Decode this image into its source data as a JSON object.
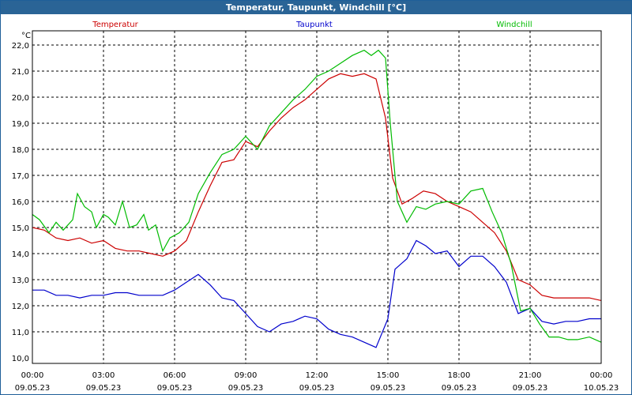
{
  "window_title": "Temperatur, Taupunkt, Windchill [°C]",
  "chart_data": {
    "type": "line",
    "unit_label": "°C",
    "ylim": [
      10.0,
      22.0
    ],
    "yticks": [
      "10,0",
      "11,0",
      "12,0",
      "13,0",
      "14,0",
      "15,0",
      "16,0",
      "17,0",
      "18,0",
      "19,0",
      "20,0",
      "21,0",
      "22,0"
    ],
    "xlim_hours": [
      0,
      24
    ],
    "xticks": [
      {
        "time": "00:00",
        "date": "09.05.23"
      },
      {
        "time": "03:00",
        "date": "09.05.23"
      },
      {
        "time": "06:00",
        "date": "09.05.23"
      },
      {
        "time": "09:00",
        "date": "09.05.23"
      },
      {
        "time": "12:00",
        "date": "09.05.23"
      },
      {
        "time": "15:00",
        "date": "09.05.23"
      },
      {
        "time": "18:00",
        "date": "09.05.23"
      },
      {
        "time": "21:00",
        "date": "09.05.23"
      },
      {
        "time": "00:00",
        "date": "10.05.23"
      }
    ],
    "grid": true,
    "series": [
      {
        "name": "Temperatur",
        "color": "#cc0000",
        "points": [
          [
            0,
            15.0
          ],
          [
            0.5,
            14.9
          ],
          [
            1,
            14.6
          ],
          [
            1.5,
            14.5
          ],
          [
            2,
            14.6
          ],
          [
            2.5,
            14.4
          ],
          [
            3,
            14.5
          ],
          [
            3.5,
            14.2
          ],
          [
            4,
            14.1
          ],
          [
            4.5,
            14.1
          ],
          [
            5,
            14.0
          ],
          [
            5.5,
            13.9
          ],
          [
            6,
            14.1
          ],
          [
            6.5,
            14.5
          ],
          [
            7,
            15.6
          ],
          [
            7.5,
            16.6
          ],
          [
            8,
            17.5
          ],
          [
            8.5,
            17.6
          ],
          [
            9,
            18.3
          ],
          [
            9.5,
            18.1
          ],
          [
            10,
            18.7
          ],
          [
            10.5,
            19.2
          ],
          [
            11,
            19.6
          ],
          [
            11.5,
            19.9
          ],
          [
            12,
            20.3
          ],
          [
            12.5,
            20.7
          ],
          [
            13,
            20.9
          ],
          [
            13.5,
            20.8
          ],
          [
            14,
            20.9
          ],
          [
            14.5,
            20.7
          ],
          [
            14.9,
            19.2
          ],
          [
            15.2,
            16.9
          ],
          [
            15.6,
            15.9
          ],
          [
            16,
            16.1
          ],
          [
            16.5,
            16.4
          ],
          [
            17,
            16.3
          ],
          [
            17.5,
            16.0
          ],
          [
            18,
            15.8
          ],
          [
            18.5,
            15.6
          ],
          [
            19,
            15.2
          ],
          [
            19.5,
            14.8
          ],
          [
            20,
            14.1
          ],
          [
            20.5,
            13.0
          ],
          [
            21,
            12.8
          ],
          [
            21.5,
            12.4
          ],
          [
            22,
            12.3
          ],
          [
            22.5,
            12.3
          ],
          [
            23,
            12.3
          ],
          [
            23.5,
            12.3
          ],
          [
            24,
            12.2
          ]
        ]
      },
      {
        "name": "Taupunkt",
        "color": "#0000cc",
        "points": [
          [
            0,
            12.6
          ],
          [
            0.5,
            12.6
          ],
          [
            1,
            12.4
          ],
          [
            1.5,
            12.4
          ],
          [
            2,
            12.3
          ],
          [
            2.5,
            12.4
          ],
          [
            3,
            12.4
          ],
          [
            3.5,
            12.5
          ],
          [
            4,
            12.5
          ],
          [
            4.5,
            12.4
          ],
          [
            5,
            12.4
          ],
          [
            5.5,
            12.4
          ],
          [
            6,
            12.6
          ],
          [
            6.5,
            12.9
          ],
          [
            7,
            13.2
          ],
          [
            7.5,
            12.8
          ],
          [
            8,
            12.3
          ],
          [
            8.5,
            12.2
          ],
          [
            9,
            11.7
          ],
          [
            9.5,
            11.2
          ],
          [
            10,
            11.0
          ],
          [
            10.5,
            11.3
          ],
          [
            11,
            11.4
          ],
          [
            11.5,
            11.6
          ],
          [
            12,
            11.5
          ],
          [
            12.5,
            11.1
          ],
          [
            13,
            10.9
          ],
          [
            13.5,
            10.8
          ],
          [
            14,
            10.6
          ],
          [
            14.5,
            10.4
          ],
          [
            15,
            11.5
          ],
          [
            15.3,
            13.4
          ],
          [
            15.8,
            13.8
          ],
          [
            16.2,
            14.5
          ],
          [
            16.6,
            14.3
          ],
          [
            17,
            14.0
          ],
          [
            17.5,
            14.1
          ],
          [
            18,
            13.5
          ],
          [
            18.5,
            13.9
          ],
          [
            19,
            13.9
          ],
          [
            19.5,
            13.5
          ],
          [
            20,
            12.9
          ],
          [
            20.5,
            11.7
          ],
          [
            21,
            11.9
          ],
          [
            21.5,
            11.4
          ],
          [
            22,
            11.3
          ],
          [
            22.5,
            11.4
          ],
          [
            23,
            11.4
          ],
          [
            23.5,
            11.5
          ],
          [
            24,
            11.5
          ]
        ]
      },
      {
        "name": "Windchill",
        "color": "#00bb00",
        "points": [
          [
            0,
            15.5
          ],
          [
            0.3,
            15.3
          ],
          [
            0.7,
            14.8
          ],
          [
            1.0,
            15.2
          ],
          [
            1.3,
            14.9
          ],
          [
            1.7,
            15.3
          ],
          [
            1.9,
            16.3
          ],
          [
            2.2,
            15.8
          ],
          [
            2.5,
            15.6
          ],
          [
            2.7,
            15.0
          ],
          [
            3.0,
            15.5
          ],
          [
            3.2,
            15.4
          ],
          [
            3.5,
            15.1
          ],
          [
            3.8,
            16.0
          ],
          [
            4.1,
            15.0
          ],
          [
            4.4,
            15.1
          ],
          [
            4.7,
            15.5
          ],
          [
            4.9,
            14.9
          ],
          [
            5.2,
            15.1
          ],
          [
            5.5,
            14.1
          ],
          [
            5.8,
            14.6
          ],
          [
            6.2,
            14.8
          ],
          [
            6.6,
            15.2
          ],
          [
            7,
            16.3
          ],
          [
            7.5,
            17.1
          ],
          [
            8,
            17.8
          ],
          [
            8.5,
            18.0
          ],
          [
            9,
            18.5
          ],
          [
            9.5,
            18.0
          ],
          [
            10,
            18.9
          ],
          [
            10.5,
            19.4
          ],
          [
            11,
            19.9
          ],
          [
            11.5,
            20.3
          ],
          [
            12,
            20.8
          ],
          [
            12.5,
            21.0
          ],
          [
            13,
            21.3
          ],
          [
            13.5,
            21.6
          ],
          [
            14,
            21.8
          ],
          [
            14.3,
            21.6
          ],
          [
            14.6,
            21.8
          ],
          [
            14.9,
            21.5
          ],
          [
            15.1,
            19.0
          ],
          [
            15.4,
            16.0
          ],
          [
            15.8,
            15.2
          ],
          [
            16.2,
            15.8
          ],
          [
            16.6,
            15.7
          ],
          [
            17,
            15.9
          ],
          [
            17.5,
            16.0
          ],
          [
            18,
            15.9
          ],
          [
            18.5,
            16.4
          ],
          [
            19,
            16.5
          ],
          [
            19.4,
            15.6
          ],
          [
            19.8,
            14.8
          ],
          [
            20.2,
            13.6
          ],
          [
            20.6,
            11.8
          ],
          [
            21,
            11.9
          ],
          [
            21.4,
            11.3
          ],
          [
            21.8,
            10.8
          ],
          [
            22.2,
            10.8
          ],
          [
            22.6,
            10.7
          ],
          [
            23,
            10.7
          ],
          [
            23.5,
            10.8
          ],
          [
            24,
            10.6
          ]
        ]
      }
    ]
  }
}
